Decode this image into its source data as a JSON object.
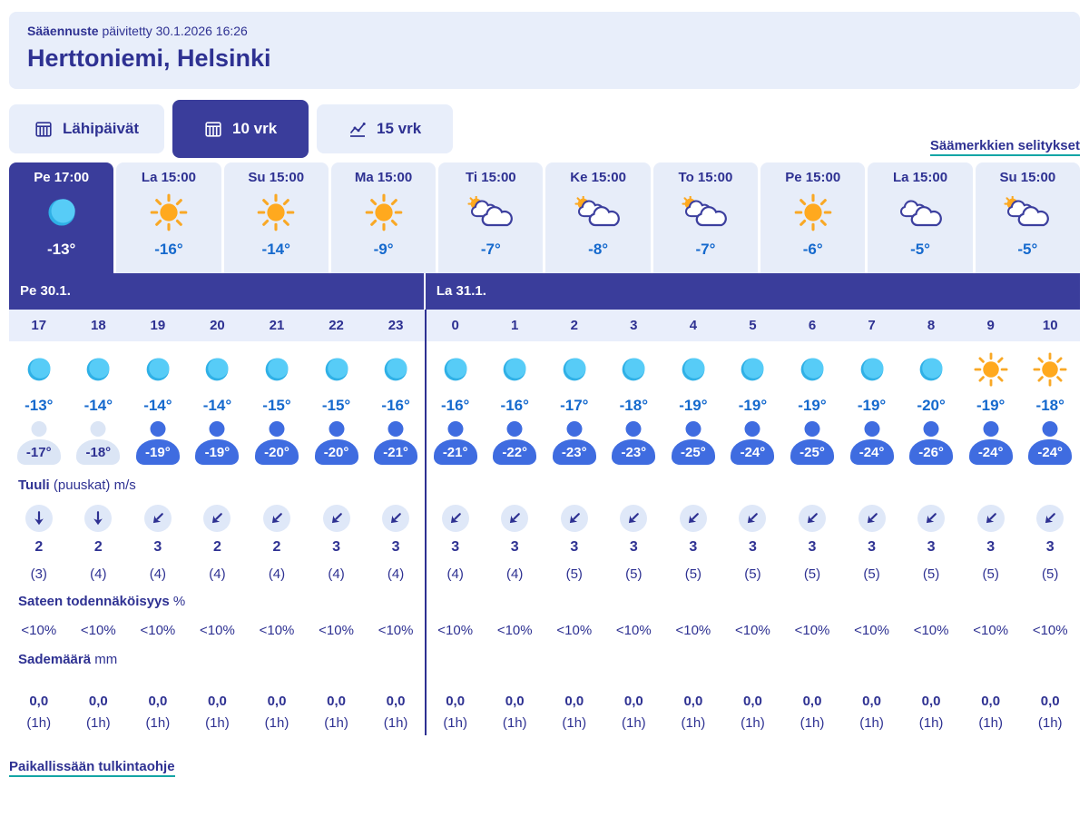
{
  "header": {
    "brand_bold": "Sääennuste",
    "updated": " päivitetty 30.1.2026 16:26",
    "location": "Herttoniemi, Helsinki"
  },
  "tabs": [
    {
      "id": "lahipaivat",
      "label": "Lähipäivät",
      "icon": "calendar",
      "active": false
    },
    {
      "id": "10vrk",
      "label": "10 vrk",
      "icon": "calendar",
      "active": true
    },
    {
      "id": "15vrk",
      "label": "15 vrk",
      "icon": "chart",
      "active": false
    }
  ],
  "legend_link_label": "Säämerkkien selitykset",
  "day_cards": [
    {
      "label": "Pe 17:00",
      "icon": "moon",
      "temp": "-13°",
      "selected": true
    },
    {
      "label": "La 15:00",
      "icon": "sun",
      "temp": "-16°",
      "selected": false
    },
    {
      "label": "Su 15:00",
      "icon": "sun",
      "temp": "-14°",
      "selected": false
    },
    {
      "label": "Ma 15:00",
      "icon": "sun",
      "temp": "-9°",
      "selected": false
    },
    {
      "label": "Ti 15:00",
      "icon": "sun-cloud",
      "temp": "-7°",
      "selected": false
    },
    {
      "label": "Ke 15:00",
      "icon": "sun-cloud",
      "temp": "-8°",
      "selected": false
    },
    {
      "label": "To 15:00",
      "icon": "sun-cloud",
      "temp": "-7°",
      "selected": false
    },
    {
      "label": "Pe 15:00",
      "icon": "sun",
      "temp": "-6°",
      "selected": false
    },
    {
      "label": "La 15:00",
      "icon": "cloud",
      "temp": "-5°",
      "selected": false
    },
    {
      "label": "Su 15:00",
      "icon": "sun-cloud",
      "temp": "-5°",
      "selected": false
    }
  ],
  "date_sections": [
    {
      "label": "Pe 30.1.",
      "col_span": 7
    },
    {
      "label": "La 31.1.",
      "col_span": 11
    }
  ],
  "labels": {
    "wind_bold": "Tuuli",
    "wind_rest": " (puuskat) m/s",
    "pop_bold": "Sateen todennäköisyys",
    "pop_rest": " %",
    "precip_bold": "Sademäärä",
    "precip_rest": " mm"
  },
  "hourly": {
    "hours": [
      "17",
      "18",
      "19",
      "20",
      "21",
      "22",
      "23",
      "0",
      "1",
      "2",
      "3",
      "4",
      "5",
      "6",
      "7",
      "8",
      "9",
      "10"
    ],
    "icons": [
      "moon",
      "moon",
      "moon",
      "moon",
      "moon",
      "moon",
      "moon",
      "moon",
      "moon",
      "moon",
      "moon",
      "moon",
      "moon",
      "moon",
      "moon",
      "moon",
      "sun",
      "sun"
    ],
    "temps": [
      "-13°",
      "-14°",
      "-14°",
      "-14°",
      "-15°",
      "-15°",
      "-16°",
      "-16°",
      "-16°",
      "-17°",
      "-18°",
      "-19°",
      "-19°",
      "-19°",
      "-19°",
      "-20°",
      "-19°",
      "-18°"
    ],
    "feels": [
      {
        "value": "-17°",
        "variant": "pale"
      },
      {
        "value": "-18°",
        "variant": "pale"
      },
      {
        "value": "-19°",
        "variant": "blue"
      },
      {
        "value": "-19°",
        "variant": "blue"
      },
      {
        "value": "-20°",
        "variant": "blue"
      },
      {
        "value": "-20°",
        "variant": "blue"
      },
      {
        "value": "-21°",
        "variant": "blue"
      },
      {
        "value": "-21°",
        "variant": "blue"
      },
      {
        "value": "-22°",
        "variant": "blue"
      },
      {
        "value": "-23°",
        "variant": "blue"
      },
      {
        "value": "-23°",
        "variant": "blue"
      },
      {
        "value": "-25°",
        "variant": "blue"
      },
      {
        "value": "-24°",
        "variant": "blue"
      },
      {
        "value": "-25°",
        "variant": "blue"
      },
      {
        "value": "-24°",
        "variant": "blue"
      },
      {
        "value": "-26°",
        "variant": "blue"
      },
      {
        "value": "-24°",
        "variant": "blue"
      },
      {
        "value": "-24°",
        "variant": "blue"
      }
    ],
    "wind_dirs": [
      "down",
      "down",
      "down-left",
      "down-left",
      "down-left",
      "down-left",
      "down-left",
      "down-left",
      "down-left",
      "down-left",
      "down-left",
      "down-left",
      "down-left",
      "down-left",
      "down-left",
      "down-left",
      "down-left",
      "down-left"
    ],
    "wind_speeds": [
      "2",
      "2",
      "3",
      "2",
      "2",
      "3",
      "3",
      "3",
      "3",
      "3",
      "3",
      "3",
      "3",
      "3",
      "3",
      "3",
      "3",
      "3"
    ],
    "wind_gusts": [
      "(3)",
      "(4)",
      "(4)",
      "(4)",
      "(4)",
      "(4)",
      "(4)",
      "(4)",
      "(4)",
      "(5)",
      "(5)",
      "(5)",
      "(5)",
      "(5)",
      "(5)",
      "(5)",
      "(5)",
      "(5)"
    ],
    "pop": [
      "<10%",
      "<10%",
      "<10%",
      "<10%",
      "<10%",
      "<10%",
      "<10%",
      "<10%",
      "<10%",
      "<10%",
      "<10%",
      "<10%",
      "<10%",
      "<10%",
      "<10%",
      "<10%",
      "<10%",
      "<10%"
    ],
    "precip_amount": [
      "0,0",
      "0,0",
      "0,0",
      "0,0",
      "0,0",
      "0,0",
      "0,0",
      "0,0",
      "0,0",
      "0,0",
      "0,0",
      "0,0",
      "0,0",
      "0,0",
      "0,0",
      "0,0",
      "0,0",
      "0,0"
    ],
    "precip_duration": [
      "(1h)",
      "(1h)",
      "(1h)",
      "(1h)",
      "(1h)",
      "(1h)",
      "(1h)",
      "(1h)",
      "(1h)",
      "(1h)",
      "(1h)",
      "(1h)",
      "(1h)",
      "(1h)",
      "(1h)",
      "(1h)",
      "(1h)",
      "(1h)"
    ]
  },
  "footer_link_label": "Paikallissään tulkintaohje",
  "colors": {
    "primary_navy": "#2e3192",
    "indigo_bg": "#3a3d9b",
    "light_panel": "#e8eefa",
    "hours_bg": "#e9eefb",
    "temp_blue": "#1569cd",
    "link_underline_teal": "#14a5a5",
    "person_blue": "#3f6ce0",
    "person_pale": "#dbe5f5",
    "moon_cyan": "#57ccf7",
    "sun_orange": "#ffa91e",
    "cloud_outline": "#3c3f9e"
  }
}
